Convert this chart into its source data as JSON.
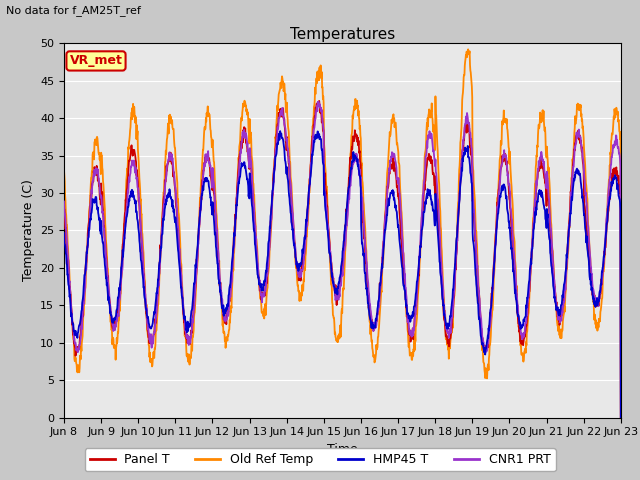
{
  "title": "Temperatures",
  "subtitle": "No data for f_AM25T_ref",
  "xlabel": "Time",
  "ylabel": "Temperature (C)",
  "ylim": [
    0,
    50
  ],
  "xtick_labels": [
    "Jun 8",
    "Jun 9",
    "Jun 10",
    "Jun 11",
    "Jun 12",
    "Jun 13",
    "Jun 14",
    "Jun 15",
    "Jun 16",
    "Jun 17",
    "Jun 18",
    "Jun 19",
    "Jun 20",
    "Jun 21",
    "Jun 22",
    "Jun 23"
  ],
  "legend_labels": [
    "Panel T",
    "Old Ref Temp",
    "HMP45 T",
    "CNR1 PRT"
  ],
  "line_colors": [
    "#cc0000",
    "#ff8800",
    "#0000cc",
    "#9933cc"
  ],
  "vr_met_label": "VR_met",
  "plot_bg_color": "#e8e8e8",
  "fig_bg_color": "#c8c8c8",
  "days": 15,
  "n_points": 1500,
  "day_peaks_orange": [
    37,
    41,
    40,
    40.5,
    42,
    45,
    46.5,
    42,
    40,
    41,
    49,
    40,
    40.5,
    42,
    41
  ],
  "day_peaks_red": [
    33,
    36,
    35,
    35,
    38,
    41,
    42,
    38,
    34,
    35,
    39,
    35,
    34,
    38,
    33
  ],
  "day_peaks_blue": [
    29,
    30,
    30,
    32,
    34,
    38,
    38,
    35,
    30,
    30,
    36,
    31,
    30,
    33,
    32
  ],
  "day_peaks_purple": [
    33,
    34,
    35,
    35,
    38,
    41,
    42,
    35,
    35,
    38,
    40,
    35,
    35,
    38,
    37
  ],
  "day_mins_orange": [
    6.5,
    9.5,
    7.5,
    7.5,
    10,
    14,
    16,
    10,
    8,
    8,
    9,
    6,
    8,
    11,
    12
  ],
  "day_mins_red": [
    9,
    12,
    10,
    10,
    13,
    16,
    19,
    16,
    12,
    11,
    10,
    9,
    10,
    13,
    15
  ],
  "day_mins_blue": [
    11,
    13,
    12,
    12,
    14,
    17,
    20,
    17,
    12,
    13,
    12,
    9,
    12,
    14,
    15
  ],
  "day_mins_purple": [
    9,
    12,
    10,
    10,
    13,
    16,
    19,
    16,
    12,
    11,
    11,
    9,
    11,
    13,
    15
  ]
}
